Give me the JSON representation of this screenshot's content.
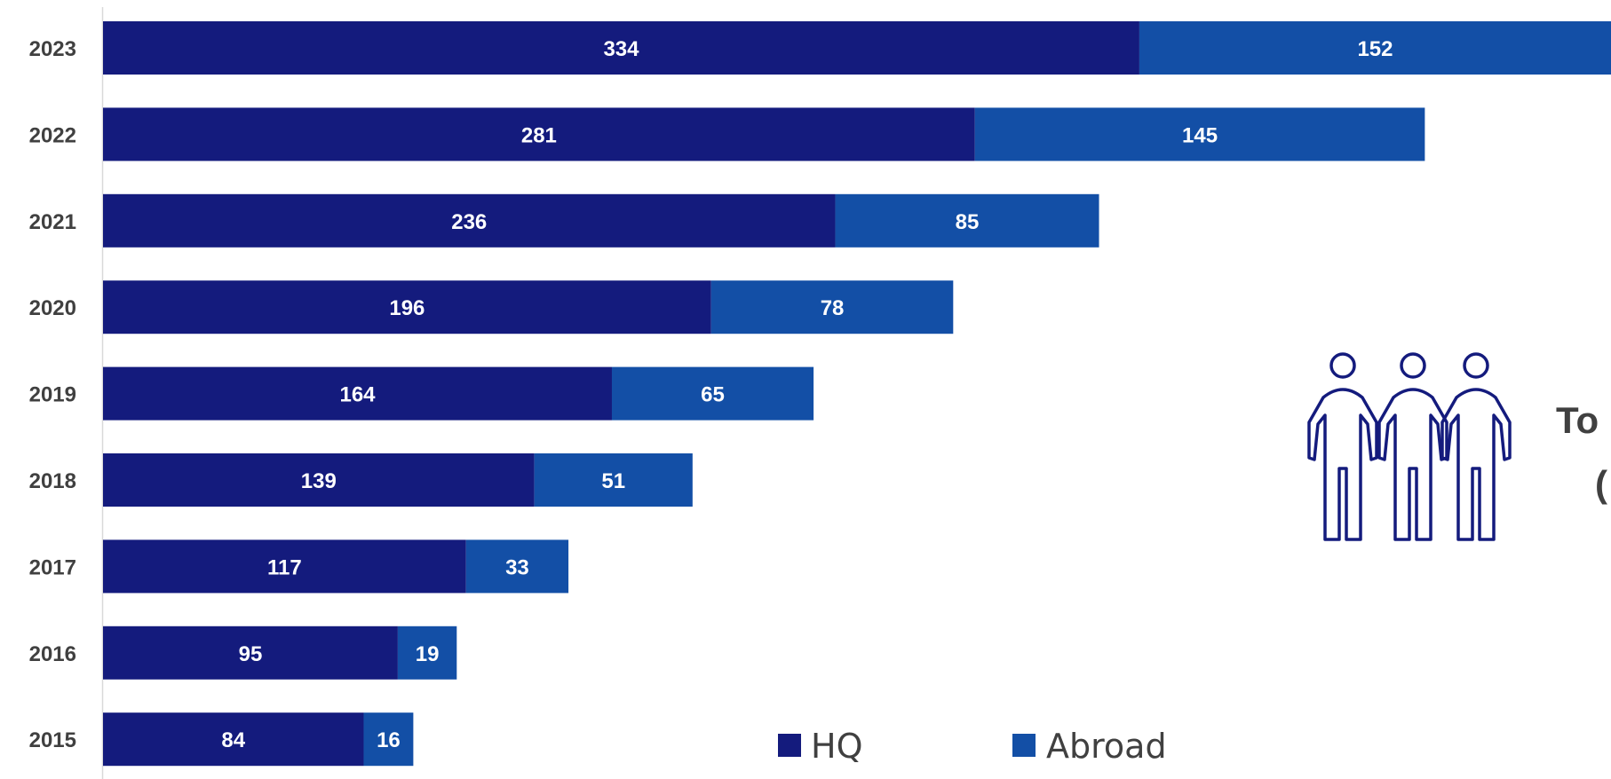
{
  "chart_data": {
    "type": "bar",
    "orientation": "horizontal",
    "stacked": true,
    "categories": [
      "2023",
      "2022",
      "2021",
      "2020",
      "2019",
      "2018",
      "2017",
      "2016",
      "2015"
    ],
    "series": [
      {
        "name": "HQ",
        "color": "#141b7d",
        "values": [
          334,
          281,
          236,
          196,
          164,
          139,
          117,
          95,
          84
        ]
      },
      {
        "name": "Abroad",
        "color": "#134fa6",
        "values": [
          152,
          145,
          85,
          78,
          65,
          51,
          33,
          19,
          16
        ]
      }
    ],
    "xlim": [
      0,
      486
    ],
    "grid": false,
    "legend_position": "bottom",
    "callout": {
      "icon": "people-group-icon",
      "line1": "To",
      "line2": "("
    }
  }
}
